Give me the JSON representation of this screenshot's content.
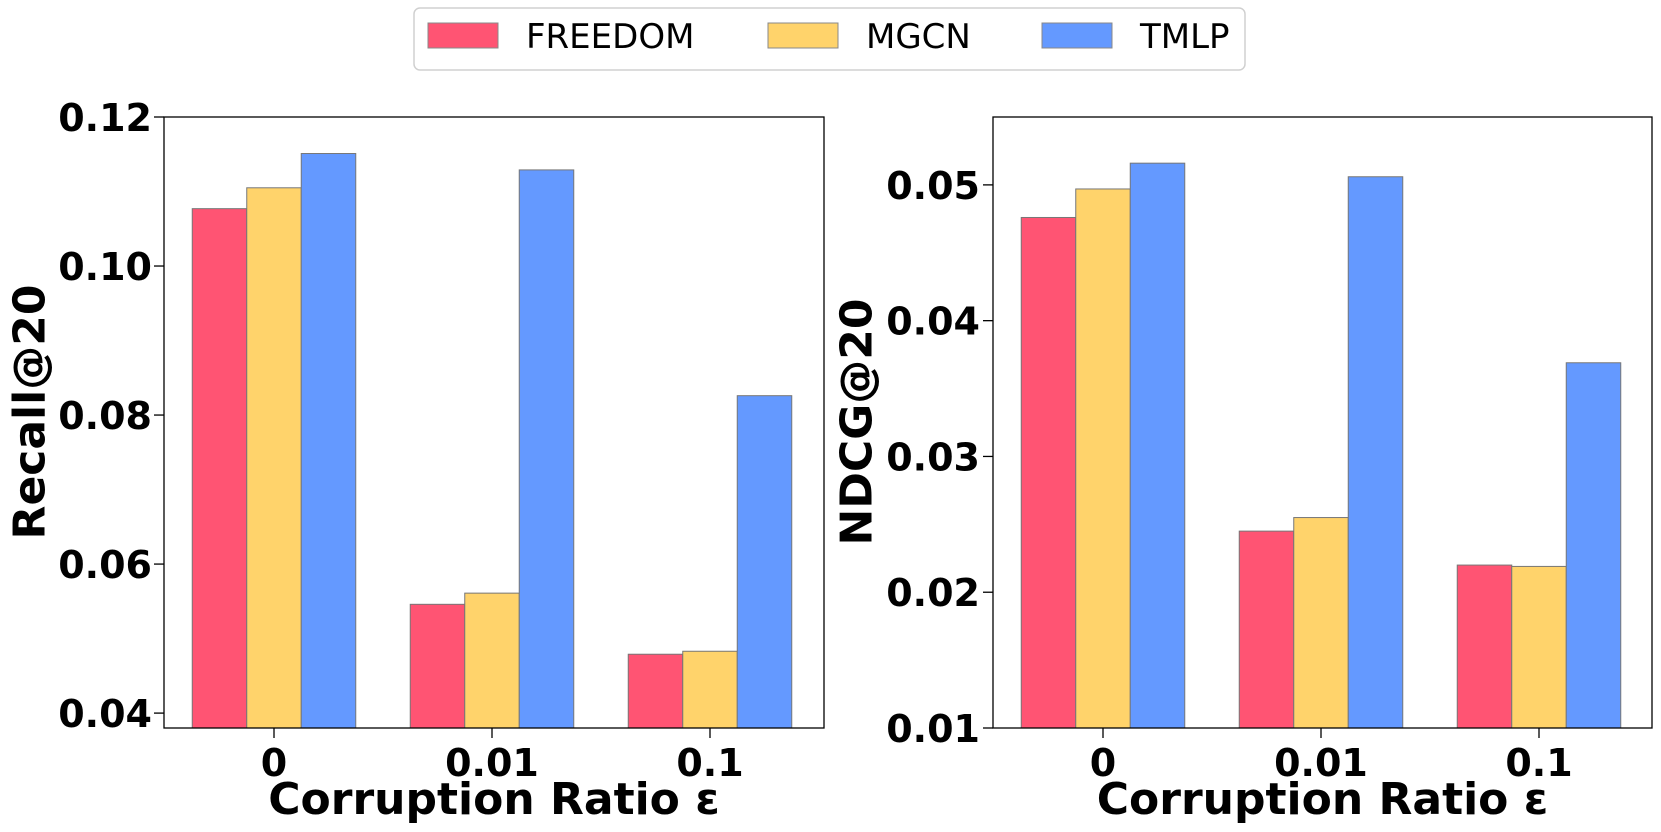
{
  "legend": [
    {
      "name": "FREEDOM",
      "color": "#ff5473"
    },
    {
      "name": "MGCN",
      "color": "#ffd36b"
    },
    {
      "name": "TMLP",
      "color": "#6499ff"
    }
  ],
  "chart_data": [
    {
      "type": "bar",
      "title": "",
      "xlabel": "Corruption Ratio ε",
      "ylabel": "Recall@20",
      "categories": [
        "0",
        "0.01",
        "0.1"
      ],
      "ylim": [
        0.038,
        0.12
      ],
      "yticks": [
        0.04,
        0.06,
        0.08,
        0.1,
        0.12
      ],
      "ytick_labels": [
        "0.04",
        "0.06",
        "0.08",
        "0.10",
        "0.12"
      ],
      "series": [
        {
          "name": "FREEDOM",
          "values": [
            0.1077,
            0.0546,
            0.0479
          ]
        },
        {
          "name": "MGCN",
          "values": [
            0.1105,
            0.0561,
            0.0483
          ]
        },
        {
          "name": "TMLP",
          "values": [
            0.1151,
            0.1129,
            0.0826
          ]
        }
      ]
    },
    {
      "type": "bar",
      "title": "",
      "xlabel": "Corruption Ratio ε",
      "ylabel": "NDCG@20",
      "categories": [
        "0",
        "0.01",
        "0.1"
      ],
      "ylim": [
        0.01,
        0.055
      ],
      "yticks": [
        0.01,
        0.02,
        0.03,
        0.04,
        0.05
      ],
      "ytick_labels": [
        "0.01",
        "0.02",
        "0.03",
        "0.04",
        "0.05"
      ],
      "series": [
        {
          "name": "FREEDOM",
          "values": [
            0.0476,
            0.0245,
            0.022
          ]
        },
        {
          "name": "MGCN",
          "values": [
            0.0497,
            0.0255,
            0.0219
          ]
        },
        {
          "name": "TMLP",
          "values": [
            0.0516,
            0.0506,
            0.0369
          ]
        }
      ]
    }
  ]
}
